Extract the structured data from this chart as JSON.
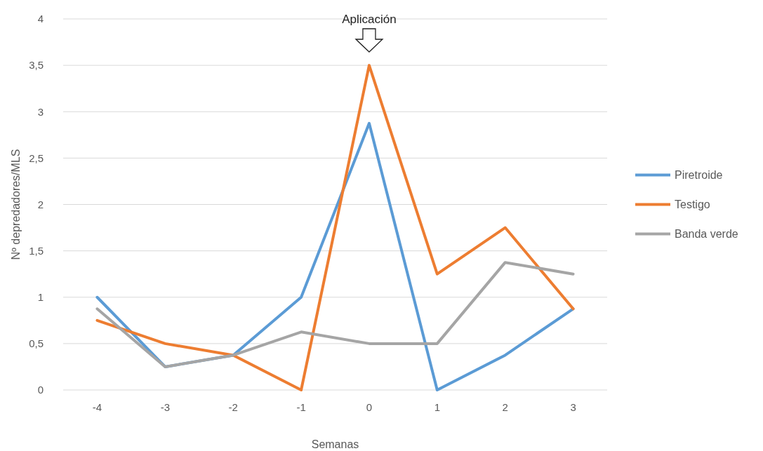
{
  "chart_data": {
    "type": "line",
    "xlabel": "Semanas",
    "ylabel": "Nº depredadores/MLS",
    "categories": [
      "-4",
      "-3",
      "-2",
      "-1",
      "0",
      "1",
      "2",
      "3"
    ],
    "series": [
      {
        "name": "Piretroide",
        "color": "#5b9bd5",
        "values": [
          1,
          0.25,
          0.375,
          1,
          2.875,
          0,
          0.375,
          0.875
        ]
      },
      {
        "name": "Testigo",
        "color": "#ed7d31",
        "values": [
          0.75,
          0.5,
          0.375,
          0,
          3.5,
          1.25,
          1.75,
          0.875
        ]
      },
      {
        "name": "Banda verde",
        "color": "#a5a5a5",
        "values": [
          0.875,
          0.25,
          0.375,
          0.625,
          0.5,
          0.5,
          1.375,
          1.25
        ]
      }
    ],
    "ylim": [
      0,
      4
    ],
    "yticks": [
      0,
      {
        "value": 0.5,
        "label": "0,5"
      },
      1,
      {
        "value": 1.5,
        "label": "1,5"
      },
      2,
      {
        "value": 2.5,
        "label": "2,5"
      },
      3,
      {
        "value": 3.5,
        "label": "3,5"
      },
      4
    ],
    "annotations": [
      "Aplicación"
    ],
    "grid": "y",
    "legend": "right",
    "marker": "none",
    "line_style": "solid"
  }
}
